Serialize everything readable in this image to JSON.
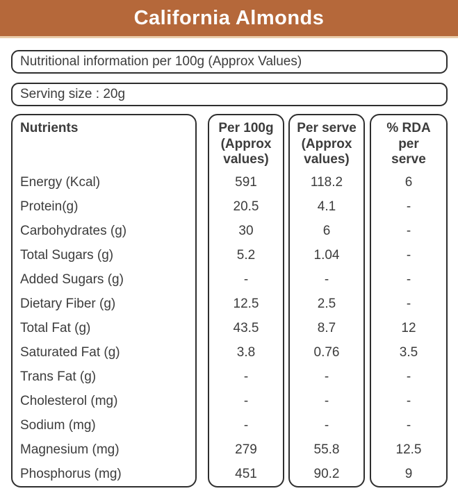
{
  "header": {
    "title": "California Almonds",
    "band_color": "#b5683a",
    "band_underline_color": "#eacdab"
  },
  "info_pill": {
    "text": "Nutritional information per 100g (Approx Values)"
  },
  "serving_pill": {
    "text": "Serving size : 20g"
  },
  "table": {
    "columns": [
      {
        "id": "nutrient",
        "label": "Nutrients"
      },
      {
        "id": "per100g",
        "label": "Per 100g\n(Approx\nvalues)"
      },
      {
        "id": "perserve",
        "label": "Per serve\n(Approx\nvalues)"
      },
      {
        "id": "rda",
        "label": "% RDA\nper\nserve"
      }
    ],
    "rows": [
      {
        "nutrient": "Energy (Kcal)",
        "per100g": "591",
        "perserve": "118.2",
        "rda": "6"
      },
      {
        "nutrient": "Protein(g)",
        "per100g": "20.5",
        "perserve": "4.1",
        "rda": "-"
      },
      {
        "nutrient": "Carbohydrates (g)",
        "per100g": "30",
        "perserve": "6",
        "rda": "-"
      },
      {
        "nutrient": "Total Sugars (g)",
        "per100g": "5.2",
        "perserve": "1.04",
        "rda": "-"
      },
      {
        "nutrient": "Added Sugars (g)",
        "per100g": "-",
        "perserve": "-",
        "rda": "-"
      },
      {
        "nutrient": "Dietary Fiber (g)",
        "per100g": "12.5",
        "perserve": "2.5",
        "rda": "-"
      },
      {
        "nutrient": "Total Fat (g)",
        "per100g": "43.5",
        "perserve": "8.7",
        "rda": "12"
      },
      {
        "nutrient": "Saturated Fat (g)",
        "per100g": "3.8",
        "perserve": "0.76",
        "rda": "3.5"
      },
      {
        "nutrient": "Trans Fat (g)",
        "per100g": "-",
        "perserve": "-",
        "rda": "-"
      },
      {
        "nutrient": "Cholesterol (mg)",
        "per100g": "-",
        "perserve": "-",
        "rda": "-"
      },
      {
        "nutrient": "Sodium (mg)",
        "per100g": "-",
        "perserve": "-",
        "rda": "-"
      },
      {
        "nutrient": "Magnesium (mg)",
        "per100g": "279",
        "perserve": "55.8",
        "rda": "12.5"
      },
      {
        "nutrient": "Phosphorus (mg)",
        "per100g": "451",
        "perserve": "90.2",
        "rda": "9"
      }
    ]
  }
}
